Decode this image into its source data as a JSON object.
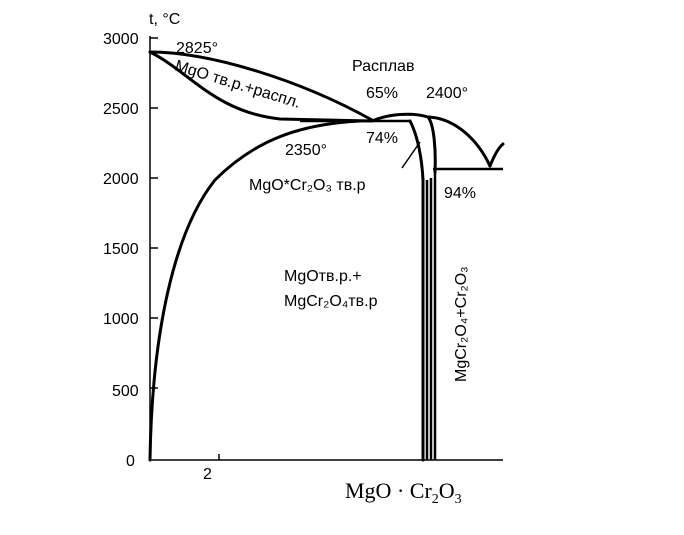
{
  "axes": {
    "y_title": "t, °C",
    "y_ticks": [
      "3000",
      "2500",
      "2000",
      "1500",
      "1000",
      "500",
      "0"
    ],
    "x_ticks": [
      "2"
    ],
    "x_title_main": "MgO · Cr",
    "x_title_sub1": "2",
    "x_title_o": "O",
    "x_title_sub2": "3"
  },
  "labels": {
    "temp_2825": "2825°",
    "temp_2400": "2400°",
    "temp_2350": "2350°",
    "melt": "Расплав",
    "pct_65": "65%",
    "pct_74": "74%",
    "pct_94": "94%",
    "mgo_melt": "MgO тв.р.+распл.",
    "solid_solution": "MgO*Cr₂O₃ тв.р",
    "two_phase_line1": "MgOтв.р.+",
    "two_phase_line2": "MgCr₂O₄тв.р",
    "right_region": "MgCr₂O₄+Cr₂O₃"
  }
}
